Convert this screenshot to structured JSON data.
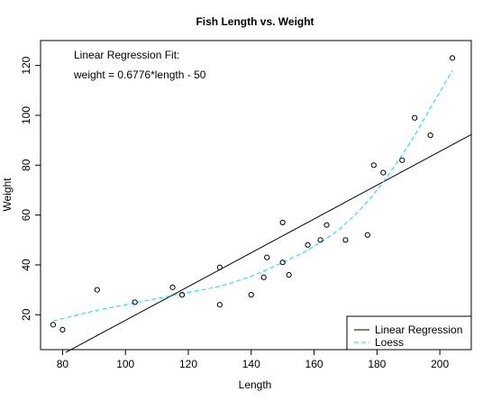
{
  "chart_data": {
    "type": "scatter",
    "title": "Fish Length vs. Weight",
    "xlabel": "Length",
    "ylabel": "Weight",
    "xlim": [
      73,
      210
    ],
    "ylim": [
      6,
      130
    ],
    "xticks": [
      80,
      100,
      120,
      140,
      160,
      180,
      200
    ],
    "yticks": [
      20,
      40,
      60,
      80,
      100,
      120
    ],
    "points": [
      {
        "x": 77,
        "y": 16
      },
      {
        "x": 80,
        "y": 14
      },
      {
        "x": 91,
        "y": 30
      },
      {
        "x": 103,
        "y": 25
      },
      {
        "x": 115,
        "y": 31
      },
      {
        "x": 118,
        "y": 28
      },
      {
        "x": 130,
        "y": 39
      },
      {
        "x": 130,
        "y": 24
      },
      {
        "x": 140,
        "y": 28
      },
      {
        "x": 144,
        "y": 35
      },
      {
        "x": 145,
        "y": 43
      },
      {
        "x": 150,
        "y": 57
      },
      {
        "x": 150,
        "y": 41
      },
      {
        "x": 152,
        "y": 36
      },
      {
        "x": 158,
        "y": 48
      },
      {
        "x": 162,
        "y": 50
      },
      {
        "x": 164,
        "y": 56
      },
      {
        "x": 170,
        "y": 50
      },
      {
        "x": 177,
        "y": 52
      },
      {
        "x": 179,
        "y": 80
      },
      {
        "x": 182,
        "y": 77
      },
      {
        "x": 188,
        "y": 82
      },
      {
        "x": 192,
        "y": 99
      },
      {
        "x": 197,
        "y": 92
      },
      {
        "x": 204,
        "y": 123
      }
    ],
    "regression": {
      "slope": 0.6776,
      "intercept": -50,
      "x_range": [
        81,
        210
      ]
    },
    "loess": [
      {
        "x": 77,
        "y": 17.5
      },
      {
        "x": 90,
        "y": 21.5
      },
      {
        "x": 100,
        "y": 24
      },
      {
        "x": 110,
        "y": 26.5
      },
      {
        "x": 120,
        "y": 29
      },
      {
        "x": 130,
        "y": 31.5
      },
      {
        "x": 140,
        "y": 35.5
      },
      {
        "x": 150,
        "y": 41
      },
      {
        "x": 160,
        "y": 47.5
      },
      {
        "x": 170,
        "y": 56.5
      },
      {
        "x": 180,
        "y": 70
      },
      {
        "x": 190,
        "y": 88
      },
      {
        "x": 197,
        "y": 103
      },
      {
        "x": 204,
        "y": 118
      }
    ],
    "annotation": {
      "line1": "Linear Regression Fit:",
      "line2": "weight = 0.6776*length - 50"
    },
    "legend": {
      "placement": "bottom-right",
      "entries": [
        {
          "label": "Linear Regression",
          "color": "#000000",
          "dash": "solid"
        },
        {
          "label": "Loess",
          "color": "#00e5ee",
          "dash": "dashed"
        }
      ]
    }
  }
}
